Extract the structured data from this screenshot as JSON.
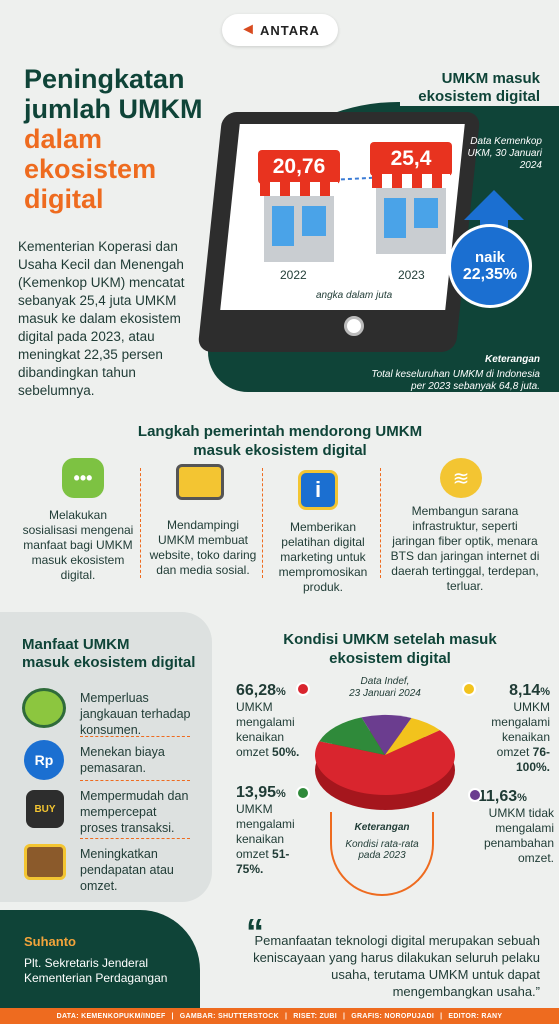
{
  "logo": {
    "name": "ANTARA"
  },
  "headline": {
    "line1": "Peningkatan",
    "line2": "jumlah UMKM",
    "line3": "dalam",
    "line4": "ekosistem",
    "line5": "digital"
  },
  "intro": "Kementerian Koperasi dan Usaha Kecil dan Menengah (Kemenkop UKM) mencatat sebanyak 25,4 juta UMKM masuk ke dalam ekosistem digital pada 2023, atau meningkat 22,35 persen dibandingkan tahun sebelumnya.",
  "tablet": {
    "title_line1": "UMKM masuk",
    "title_line2": "ekosistem digital",
    "source": "Data Kemenkop UKM, 30 Januari 2024",
    "stores": [
      {
        "value": "20,76",
        "year": "2022"
      },
      {
        "value": "25,4",
        "year": "2023"
      }
    ],
    "unit_note": "angka dalam juta",
    "increase_label": "naik",
    "increase_value": "22,35%",
    "note_title": "Keterangan",
    "note_text": "Total keseluruhan UMKM di Indonesia per 2023 sebanyak 64,8 juta."
  },
  "steps": {
    "title_line1": "Langkah pemerintah mendorong UMKM",
    "title_line2": "masuk ekosistem digital",
    "items": [
      {
        "icon": "chat-bubble-icon",
        "text": "Melakukan sosialisasi mengenai manfaat bagi UMKM masuk ekosistem digital."
      },
      {
        "icon": "laptop-cart-icon",
        "text": "Mendampingi UMKM membuat website, toko daring dan media sosial."
      },
      {
        "icon": "info-phone-icon",
        "text": "Memberikan pelatihan digital marketing untuk mempromosikan produk."
      },
      {
        "icon": "wifi-icon",
        "text": "Membangun sarana infrastruktur, seperti jaringan fiber optik, menara BTS dan jaringan internet di daerah tertinggal, terdepan, terluar."
      }
    ]
  },
  "benefits": {
    "title_line1": "Manfaat UMKM",
    "title_line2": "masuk ekosistem digital",
    "items": [
      {
        "icon": "globe-icon",
        "text": "Memperluas jangkauan terhadap konsumen."
      },
      {
        "icon": "cost-down-icon",
        "text": "Menekan biaya pemasaran."
      },
      {
        "icon": "buy-card-icon",
        "text": "Mempermudah dan mempercepat proses transaksi."
      },
      {
        "icon": "wallet-icon",
        "text": "Meningkatkan pendapatan atau omzet."
      }
    ]
  },
  "conditions": {
    "title_line1": "Kondisi UMKM setelah masuk",
    "title_line2": "ekosistem digital",
    "source_line1": "Data Indef,",
    "source_line2": "23 Januari 2024",
    "note_title": "Keterangan",
    "note_line1": "Kondisi rata-rata",
    "note_line2": "pada 2023",
    "colors": {
      "red": "#d9252e",
      "green": "#2f8a3a",
      "purple": "#6b3d8f",
      "yellow": "#f2c31d"
    }
  },
  "chart_data": {
    "type": "pie",
    "categories": [
      "omzet 50%",
      "omzet 51-75%",
      "tidak mengalami penambahan omzet",
      "omzet 76-100%"
    ],
    "values": [
      66.28,
      13.95,
      11.63,
      8.14
    ],
    "labels": [
      {
        "pct": "66,28",
        "unit": "%",
        "text": "UMKM mengalami kenaikan omzet ",
        "bold": "50%."
      },
      {
        "pct": "13,95",
        "unit": "%",
        "text": "UMKM mengalami kenaikan omzet ",
        "bold": "51-75%."
      },
      {
        "pct": "11,63",
        "unit": "%",
        "text": "UMKM tidak mengalami penambahan omzet.",
        "bold": ""
      },
      {
        "pct": "8,14",
        "unit": "%",
        "text": "UMKM mengalami kenaikan omzet ",
        "bold": "76-100%."
      }
    ]
  },
  "quote": {
    "name": "Suhanto",
    "role_line1": "Plt. Sekretaris Jenderal",
    "role_line2": "Kementerian Perdagangan",
    "text": "Pemanfaatan teknologi digital merupakan sebuah keniscayaan yang harus dilakukan seluruh pelaku usaha, terutama UMKM untuk dapat mengembangkan usaha.”"
  },
  "footer": {
    "data": "DATA: KEMENKOPUKM/INDEF",
    "gambar": "GAMBAR: SHUTTERSTOCK",
    "riset": "RISET: ZUBI",
    "grafis": "GRAFIS: NOROPUJADI",
    "editor": "EDITOR: RANY"
  }
}
